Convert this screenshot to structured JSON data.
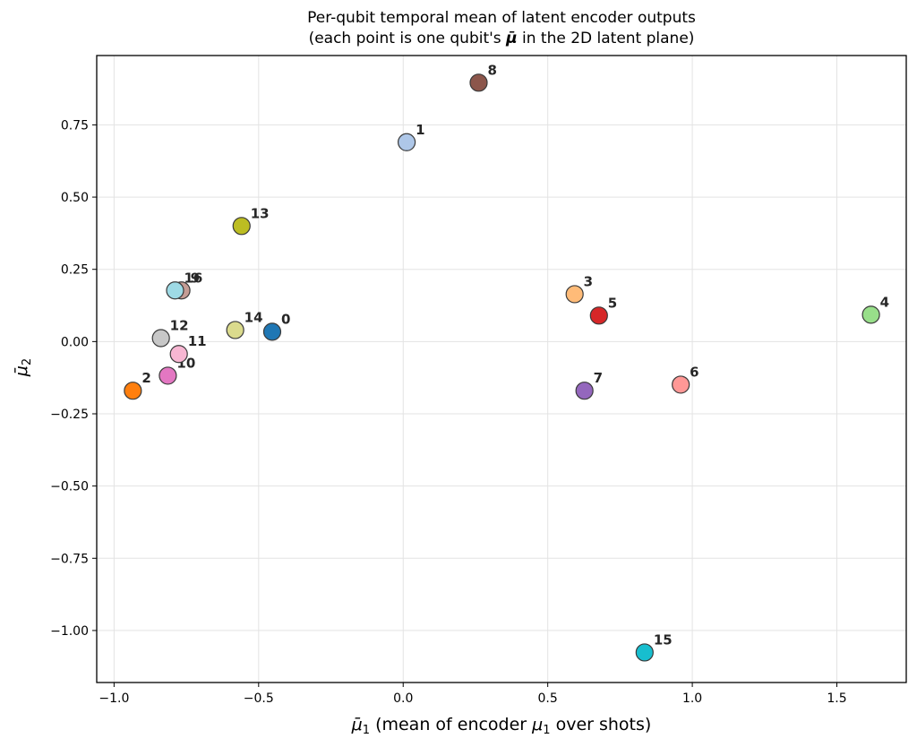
{
  "chart_data": {
    "type": "scatter",
    "title": "Per-qubit temporal mean of latent encoder outputs",
    "subtitle_prefix": "(each point is one qubit's ",
    "subtitle_symbol": "μ̄",
    "subtitle_suffix": " in the 2D latent plane)",
    "xlabel_symbol": "μ̄",
    "xlabel_sub": "1",
    "xlabel_text": " (mean of encoder ",
    "xlabel_symbol2": "μ",
    "xlabel_sub2": "1",
    "xlabel_tail": " over shots)",
    "ylabel_symbol": "μ̄",
    "ylabel_sub": "2",
    "xlim": [
      -1.06,
      1.74
    ],
    "ylim": [
      -1.18,
      0.99
    ],
    "grid": true,
    "xticks": [
      -1.0,
      -0.5,
      0.0,
      0.5,
      1.0,
      1.5
    ],
    "xtick_labels": [
      "−1.0",
      "−0.5",
      "0.0",
      "0.5",
      "1.0",
      "1.5"
    ],
    "yticks": [
      0.75,
      0.5,
      0.25,
      0.0,
      -0.25,
      -0.5,
      -0.75,
      -1.0
    ],
    "ytick_labels": [
      "0.75",
      "0.50",
      "0.25",
      "0.00",
      "−0.25",
      "−0.50",
      "−0.75",
      "−1.00"
    ],
    "points": [
      {
        "label": "0",
        "x": -0.453,
        "y": 0.034,
        "color": "#1f77b4"
      },
      {
        "label": "1",
        "x": 0.012,
        "y": 0.69,
        "color": "#aec7e8"
      },
      {
        "label": "2",
        "x": -0.935,
        "y": -0.17,
        "color": "#ff7f0e"
      },
      {
        "label": "3",
        "x": 0.593,
        "y": 0.164,
        "color": "#ffbb78"
      },
      {
        "label": "4",
        "x": 1.618,
        "y": 0.093,
        "color": "#98df8a"
      },
      {
        "label": "5",
        "x": 0.677,
        "y": 0.09,
        "color": "#d62728"
      },
      {
        "label": "6",
        "x": 0.96,
        "y": -0.149,
        "color": "#ff9896"
      },
      {
        "label": "7",
        "x": 0.627,
        "y": -0.17,
        "color": "#9467bd"
      },
      {
        "label": "8",
        "x": 0.261,
        "y": 0.896,
        "color": "#8c564b"
      },
      {
        "label": "9",
        "x": -0.767,
        "y": 0.177,
        "color": "#c49c94"
      },
      {
        "label": "10",
        "x": -0.814,
        "y": -0.118,
        "color": "#e377c2"
      },
      {
        "label": "11",
        "x": -0.776,
        "y": -0.043,
        "color": "#f7b6d2"
      },
      {
        "label": "12",
        "x": -0.838,
        "y": 0.012,
        "color": "#c7c7c7"
      },
      {
        "label": "13",
        "x": -0.559,
        "y": 0.4,
        "color": "#bcbd22"
      },
      {
        "label": "14",
        "x": -0.581,
        "y": 0.04,
        "color": "#dbdb8d"
      },
      {
        "label": "15",
        "x": 0.835,
        "y": -1.076,
        "color": "#17becf"
      },
      {
        "label": "16",
        "x": -0.789,
        "y": 0.177,
        "color": "#9edae5"
      }
    ]
  }
}
